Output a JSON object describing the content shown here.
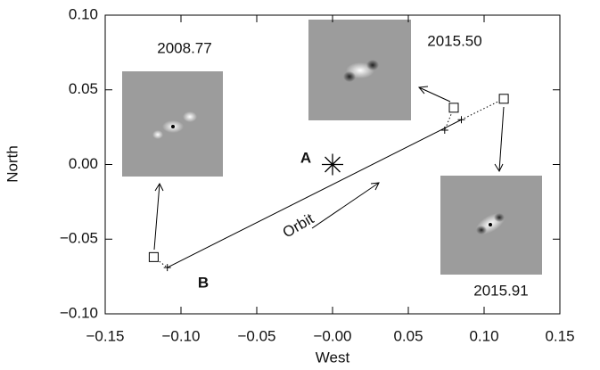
{
  "chart_data": {
    "type": "scatter",
    "xlabel": "West",
    "ylabel": "North",
    "xlim": [
      -0.15,
      0.15
    ],
    "ylim": [
      -0.1,
      0.1
    ],
    "xticks": [
      {
        "value": -0.15,
        "label": "−0.15"
      },
      {
        "value": -0.1,
        "label": "−0.10"
      },
      {
        "value": -0.05,
        "label": "−0.05"
      },
      {
        "value": 0,
        "label": "−0.00"
      },
      {
        "value": 0.05,
        "label": "0.05"
      },
      {
        "value": 0.1,
        "label": "0.10"
      },
      {
        "value": 0.15,
        "label": "0.15"
      }
    ],
    "yticks": [
      {
        "value": -0.1,
        "label": "−0.10"
      },
      {
        "value": -0.05,
        "label": "−0.05"
      },
      {
        "value": 0,
        "label": "0.00"
      },
      {
        "value": 0.05,
        "label": "0.05"
      },
      {
        "value": 0.1,
        "label": "0.10"
      }
    ],
    "epochs": [
      "2008.77",
      "2015.50",
      "2015.91"
    ],
    "observed_x": [
      -0.118,
      0.08,
      0.113
    ],
    "observed_y": [
      -0.062,
      0.038,
      0.044
    ],
    "predicted_x": [
      -0.109,
      0.074,
      0.085
    ],
    "predicted_y": [
      -0.069,
      0.023,
      0.03
    ],
    "primary": {
      "label": "A",
      "x": 0,
      "y": 0
    },
    "companion_label": "B",
    "orbit_label": "Orbit",
    "color": "#000000"
  }
}
